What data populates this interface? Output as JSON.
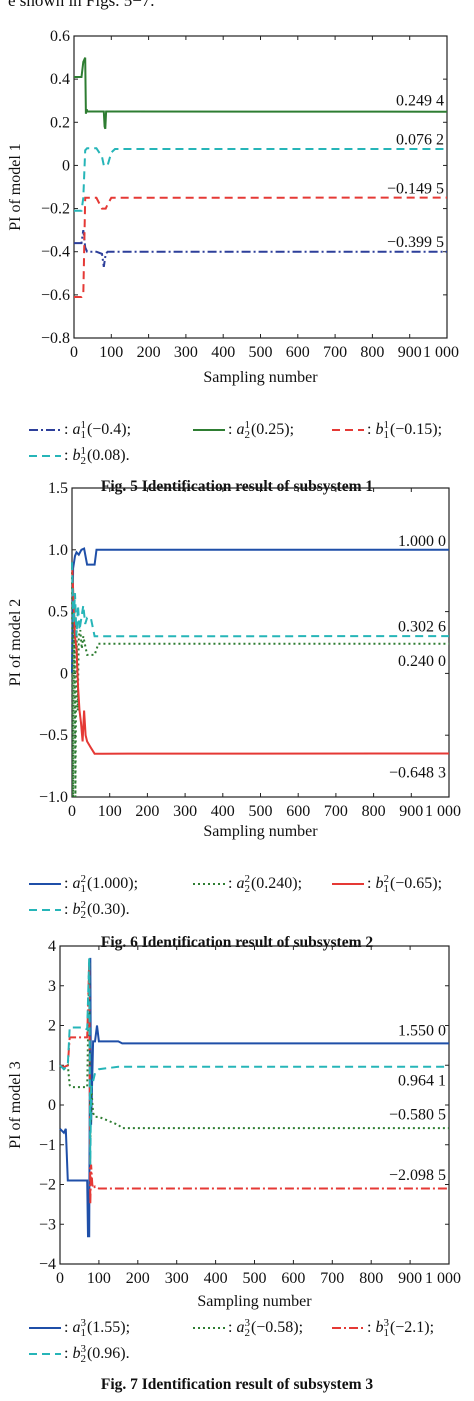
{
  "top_text": "e shown in Figs. 5−7.",
  "chart_data": [
    {
      "type": "line",
      "ylabel": "PI of model 1",
      "xlabel": "Sampling number",
      "xlim": [
        0,
        1000
      ],
      "ylim": [
        -0.8,
        0.6
      ],
      "xticks": [
        "0",
        "100",
        "200",
        "300",
        "400",
        "500",
        "600",
        "700",
        "800",
        "900",
        "1 000"
      ],
      "yticks": [
        "0.6",
        "0.4",
        "0.2",
        "0",
        "−0.2",
        "−0.4",
        "−0.6",
        "−0.8"
      ],
      "series": [
        {
          "name": "a1",
          "legend_main": "a",
          "legend_sup": "1",
          "legend_sub": "1",
          "legend_tail": "(−0.4);",
          "color": "#2d3f9a",
          "dash": "9 3 2 3",
          "x": [
            0,
            20,
            25,
            30,
            35,
            40,
            60,
            75,
            80,
            85,
            90,
            1000
          ],
          "y": [
            -0.36,
            -0.36,
            -0.3,
            -0.38,
            -0.4,
            -0.4,
            -0.4,
            -0.41,
            -0.47,
            -0.41,
            -0.4,
            -0.4
          ]
        },
        {
          "name": "a2",
          "legend_main": "a",
          "legend_sup": "1",
          "legend_sub": "2",
          "legend_tail": "(0.25);",
          "color": "#2e7d32",
          "dash": "",
          "x": [
            0,
            20,
            25,
            30,
            32,
            34,
            36,
            40,
            50,
            80,
            82,
            84,
            86,
            90,
            1000
          ],
          "y": [
            0.41,
            0.41,
            0.48,
            0.5,
            0.24,
            0.26,
            0.25,
            0.25,
            0.25,
            0.25,
            0.18,
            0.17,
            0.25,
            0.25,
            0.249
          ]
        },
        {
          "name": "b1",
          "legend_main": "b",
          "legend_sup": "1",
          "legend_sub": "1",
          "legend_tail": "(−0.15);",
          "color": "#e53935",
          "dash": "8 5",
          "x": [
            0,
            20,
            25,
            30,
            35,
            60,
            75,
            80,
            85,
            90,
            100,
            110,
            1000
          ],
          "y": [
            -0.61,
            -0.61,
            -0.6,
            -0.15,
            -0.15,
            -0.15,
            -0.2,
            -0.2,
            -0.2,
            -0.18,
            -0.15,
            -0.15,
            -0.149
          ]
        },
        {
          "name": "b2",
          "legend_main": "b",
          "legend_sup": "1",
          "legend_sub": "2",
          "legend_tail": "(0.08).",
          "color": "#26b5b8",
          "dash": "8 5",
          "x": [
            0,
            20,
            25,
            30,
            35,
            60,
            75,
            80,
            85,
            90,
            100,
            110,
            1000
          ],
          "y": [
            -0.21,
            -0.21,
            -0.15,
            0.07,
            0.08,
            0.08,
            0.04,
            0.0,
            0.0,
            0.0,
            0.06,
            0.076,
            0.076
          ]
        }
      ],
      "annotations": [
        {
          "text": "0.249 4",
          "x": 830,
          "y": 0.3
        },
        {
          "text": "0.076 2",
          "x": 830,
          "y": 0.12
        },
        {
          "text": "−0.149 5",
          "x": 830,
          "y": -0.106
        },
        {
          "text": "−0.399 5",
          "x": 830,
          "y": -0.355
        }
      ],
      "caption": "Fig. 5    Identification result of subsystem 1"
    },
    {
      "type": "line",
      "ylabel": "PI of model 2",
      "xlabel": "Sampling number",
      "xlim": [
        0,
        1000
      ],
      "ylim": [
        -1.0,
        1.5
      ],
      "xticks": [
        "0",
        "100",
        "200",
        "300",
        "400",
        "500",
        "600",
        "700",
        "800",
        "900",
        "1 000"
      ],
      "yticks": [
        "1.5",
        "1.0",
        "0.5",
        "0",
        "−0.5",
        "−1.0"
      ],
      "series": [
        {
          "name": "a1",
          "legend_main": "a",
          "legend_sup": "2",
          "legend_sub": "1",
          "legend_tail": "(1.000);",
          "color": "#1f4fa8",
          "dash": "",
          "x": [
            0,
            3,
            8,
            12,
            18,
            25,
            32,
            40,
            60,
            65,
            1000
          ],
          "y": [
            0.0,
            0.85,
            0.95,
            0.98,
            0.96,
            1.0,
            1.01,
            0.88,
            0.88,
            1.0,
            1.0
          ]
        },
        {
          "name": "a2",
          "legend_main": "a",
          "legend_sup": "2",
          "legend_sub": "2",
          "legend_tail": "(0.240);",
          "color": "#2e7d32",
          "dash": "2 3",
          "x": [
            0,
            3,
            6,
            9,
            12,
            15,
            18,
            22,
            26,
            30,
            40,
            50,
            60,
            70,
            1000
          ],
          "y": [
            0.9,
            -1.0,
            0.6,
            -1.0,
            0.4,
            -0.3,
            0.3,
            0.35,
            0.2,
            0.3,
            0.15,
            0.15,
            0.15,
            0.24,
            0.24
          ]
        },
        {
          "name": "b1",
          "legend_main": "b",
          "legend_sup": "2",
          "legend_sub": "1",
          "legend_tail": "(−0.65);",
          "color": "#e53935",
          "dash": "",
          "x": [
            0,
            4,
            8,
            12,
            16,
            20,
            24,
            28,
            32,
            36,
            40,
            50,
            60,
            70,
            80,
            1000
          ],
          "y": [
            0.9,
            0.6,
            0.3,
            0.2,
            -0.1,
            -0.3,
            -0.4,
            -0.55,
            -0.3,
            -0.5,
            -0.55,
            -0.6,
            -0.65,
            -0.65,
            -0.65,
            -0.648
          ]
        },
        {
          "name": "b2",
          "legend_main": "b",
          "legend_sup": "2",
          "legend_sub": "2",
          "legend_tail": "(0.30).",
          "color": "#26b5b8",
          "dash": "8 5",
          "x": [
            0,
            4,
            8,
            12,
            16,
            20,
            25,
            30,
            35,
            40,
            50,
            60,
            70,
            1000
          ],
          "y": [
            0.9,
            0.4,
            0.65,
            0.3,
            0.55,
            0.35,
            0.45,
            0.55,
            0.4,
            0.45,
            0.45,
            0.3,
            0.3,
            0.302
          ]
        }
      ],
      "annotations": [
        {
          "text": "1.000 0",
          "x": 830,
          "y": 1.07
        },
        {
          "text": "0.302 6",
          "x": 830,
          "y": 0.38
        },
        {
          "text": "0.240 0",
          "x": 830,
          "y": 0.1
        },
        {
          "text": "−0.648 3",
          "x": 830,
          "y": -0.8
        }
      ],
      "caption": "Fig. 6    Identification result of subsystem 2"
    },
    {
      "type": "line",
      "ylabel": "PI of model 3",
      "xlabel": "Sampling number",
      "xlim": [
        0,
        1000
      ],
      "ylim": [
        -4,
        4
      ],
      "xticks": [
        "0",
        "100",
        "200",
        "300",
        "400",
        "500",
        "600",
        "700",
        "800",
        "900",
        "1 000"
      ],
      "yticks": [
        "4",
        "3",
        "2",
        "1",
        "0",
        "−1",
        "−2",
        "−3",
        "−4"
      ],
      "series": [
        {
          "name": "a1",
          "legend_main": "a",
          "legend_sup": "3",
          "legend_sub": "1",
          "legend_tail": "(1.55);",
          "color": "#1f4fa8",
          "dash": "",
          "x": [
            0,
            10,
            15,
            20,
            25,
            60,
            70,
            72,
            75,
            78,
            80,
            85,
            90,
            95,
            100,
            150,
            160,
            1000
          ],
          "y": [
            -0.6,
            -0.7,
            -0.6,
            -1.9,
            -1.9,
            -1.9,
            -1.9,
            -3.3,
            -3.3,
            3.7,
            -0.5,
            1.6,
            1.6,
            2.0,
            1.6,
            1.6,
            1.55,
            1.55
          ]
        },
        {
          "name": "a2",
          "legend_main": "a",
          "legend_sup": "3",
          "legend_sub": "2",
          "legend_tail": "(−0.58);",
          "color": "#2e7d32",
          "dash": "2 3",
          "x": [
            0,
            10,
            20,
            25,
            30,
            60,
            70,
            75,
            78,
            80,
            85,
            90,
            100,
            150,
            160,
            1000
          ],
          "y": [
            1.0,
            0.9,
            1.0,
            0.5,
            0.45,
            0.45,
            0.45,
            3.6,
            -1.0,
            0.5,
            -0.2,
            -0.3,
            -0.3,
            -0.5,
            -0.58,
            -0.58
          ]
        },
        {
          "name": "b1",
          "legend_main": "b",
          "legend_sup": "3",
          "legend_sub": "1",
          "legend_tail": "(−2.1);",
          "color": "#e53935",
          "dash": "9 3 2 3",
          "x": [
            0,
            10,
            20,
            25,
            30,
            60,
            70,
            75,
            78,
            80,
            83,
            86,
            90,
            100,
            120,
            1000
          ],
          "y": [
            1.0,
            0.95,
            1.0,
            1.7,
            1.7,
            1.7,
            1.7,
            3.6,
            -2.5,
            -1.5,
            -2.0,
            -2.1,
            -2.05,
            -2.1,
            -2.1,
            -2.1
          ]
        },
        {
          "name": "b2",
          "legend_main": "b",
          "legend_sup": "3",
          "legend_sub": "2",
          "legend_tail": "(0.96).",
          "color": "#26b5b8",
          "dash": "8 5",
          "x": [
            0,
            10,
            20,
            25,
            30,
            60,
            70,
            75,
            78,
            80,
            85,
            90,
            100,
            150,
            160,
            1000
          ],
          "y": [
            1.0,
            0.9,
            1.0,
            1.95,
            1.95,
            1.95,
            1.9,
            3.7,
            -1.5,
            0.4,
            0.6,
            0.8,
            0.9,
            0.96,
            0.96,
            0.96
          ]
        }
      ],
      "annotations": [
        {
          "text": "1.550 0",
          "x": 830,
          "y": 1.88
        },
        {
          "text": "0.964 1",
          "x": 830,
          "y": 0.62
        },
        {
          "text": "−0.580 5",
          "x": 830,
          "y": -0.24
        },
        {
          "text": "−2.098 5",
          "x": 830,
          "y": -1.76
        }
      ],
      "caption": "Fig. 7    Identification result of subsystem 3"
    }
  ]
}
